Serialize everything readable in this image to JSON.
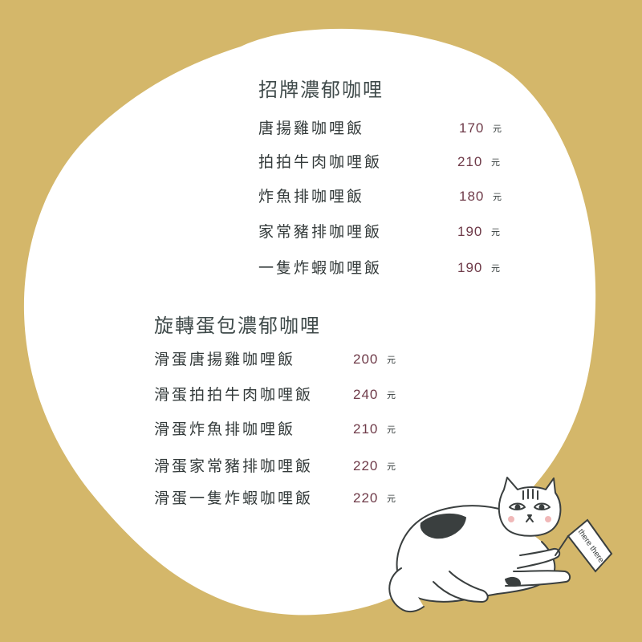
{
  "colors": {
    "background": "#d4b76a",
    "card": "#ffffff",
    "title": "#3f4a4a",
    "name": "#333a3a",
    "price": "#6e3a48"
  },
  "sections": [
    {
      "title": "招牌濃郁咖哩",
      "items": [
        {
          "name": "唐揚雞咖哩飯",
          "price": "170",
          "unit": "元"
        },
        {
          "name": "拍拍牛肉咖哩飯",
          "price": "210",
          "unit": "元"
        },
        {
          "name": "炸魚排咖哩飯",
          "price": "180",
          "unit": "元"
        },
        {
          "name": "家常豬排咖哩飯",
          "price": "190",
          "unit": "元"
        },
        {
          "name": "一隻炸蝦咖哩飯",
          "price": "190",
          "unit": "元"
        }
      ]
    },
    {
      "title": "旋轉蛋包濃郁咖哩",
      "items": [
        {
          "name": "滑蛋唐揚雞咖哩飯",
          "price": "200",
          "unit": "元"
        },
        {
          "name": "滑蛋拍拍牛肉咖哩飯",
          "price": "240",
          "unit": "元"
        },
        {
          "name": "滑蛋炸魚排咖哩飯",
          "price": "210",
          "unit": "元"
        },
        {
          "name": "滑蛋家常豬排咖哩飯",
          "price": "220",
          "unit": "元"
        },
        {
          "name": "滑蛋一隻炸蝦咖哩飯",
          "price": "220",
          "unit": "元"
        }
      ]
    }
  ],
  "illustration": {
    "subject": "cat-icon",
    "flag_text": "there there"
  }
}
